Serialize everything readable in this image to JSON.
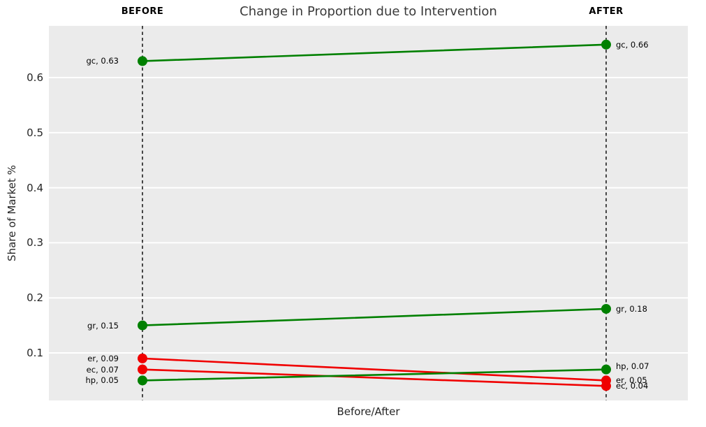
{
  "chart_data": {
    "type": "line",
    "subtype": "slope-before-after",
    "title": "Change in Proportion due to Intervention",
    "xlabel": "Before/After",
    "ylabel": "Share of Market %",
    "columns": [
      {
        "label": "BEFORE"
      },
      {
        "label": "AFTER"
      }
    ],
    "yticks": [
      0.1,
      0.2,
      0.3,
      0.4,
      0.5,
      0.6
    ],
    "ytick_labels": [
      "0.1",
      "0.2",
      "0.3",
      "0.4",
      "0.5",
      "0.6"
    ],
    "ylim": [
      0.0137,
      0.694
    ],
    "grid": true,
    "legend": "none",
    "colors": {
      "increase": "#008000",
      "decrease": "#f00000",
      "plot_background": "#ebebeb",
      "gridline": "#ffffff",
      "column_axis": "#000000"
    },
    "series": [
      {
        "name": "gc",
        "before": 0.63,
        "after": 0.66,
        "direction": "increase",
        "color": "#008000",
        "label_before": "gc, 0.63",
        "label_after": "gc, 0.66"
      },
      {
        "name": "gr",
        "before": 0.15,
        "after": 0.18,
        "direction": "increase",
        "color": "#008000",
        "label_before": "gr, 0.15",
        "label_after": "gr, 0.18"
      },
      {
        "name": "er",
        "before": 0.09,
        "after": 0.05,
        "direction": "decrease",
        "color": "#f00000",
        "label_before": "er, 0.09",
        "label_after": "er, 0.05"
      },
      {
        "name": "ec",
        "before": 0.07,
        "after": 0.04,
        "direction": "decrease",
        "color": "#f00000",
        "label_before": "ec, 0.07",
        "label_after": "ec, 0.04"
      },
      {
        "name": "hp",
        "before": 0.05,
        "after": 0.07,
        "direction": "increase",
        "color": "#008000",
        "label_before": "hp, 0.05",
        "label_after": "hp, 0.07"
      }
    ]
  }
}
